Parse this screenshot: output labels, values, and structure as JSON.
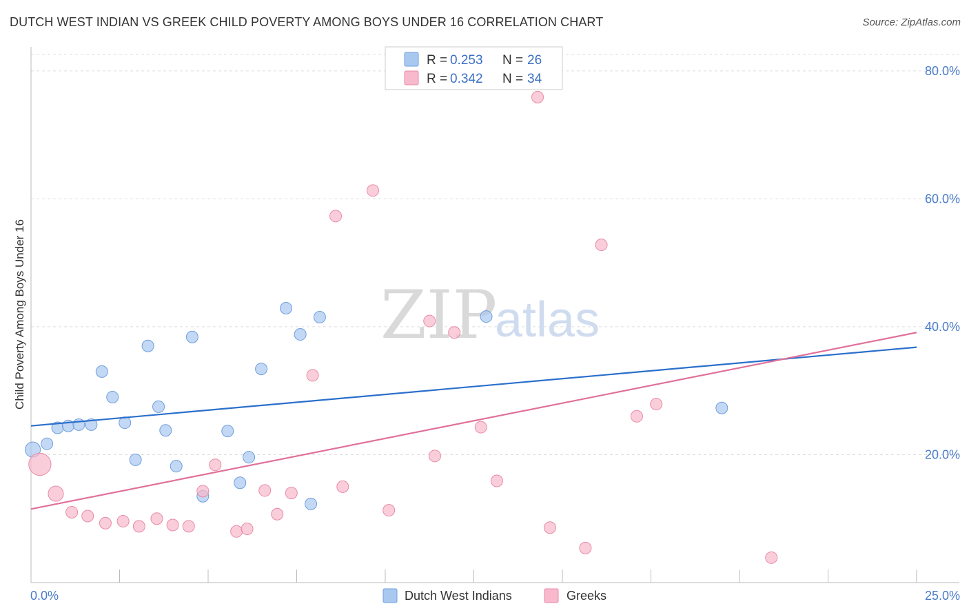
{
  "header": {
    "title": "DUTCH WEST INDIAN VS GREEK CHILD POVERTY AMONG BOYS UNDER 16 CORRELATION CHART",
    "source": "Source: ZipAtlas.com"
  },
  "watermark": {
    "zip": "ZIP",
    "atlas": "atlas"
  },
  "legend": {
    "r_label": "R =",
    "n_label": "N =",
    "entries": [
      {
        "r": "0.253",
        "n": "26",
        "color": "#a9c8f0"
      },
      {
        "r": "0.342",
        "n": "34",
        "color": "#f7b9cb"
      }
    ]
  },
  "bottom_legend": [
    {
      "label": "Dutch West Indians",
      "color": "#a9c8f0"
    },
    {
      "label": "Greeks",
      "color": "#f7b9cb"
    }
  ],
  "colors": {
    "blue_fill": "#a9c8f0",
    "blue_stroke": "#6f9fdc",
    "blue_line": "#2a6fcc",
    "pink_fill": "#f7b9cb",
    "pink_stroke": "#e98aa8",
    "pink_line": "#e0709a",
    "grid": "#dddddd",
    "axis": "#bbbbbb"
  },
  "chart_data": {
    "type": "scatter",
    "ylabel": "Child Poverty Among Boys Under 16",
    "xlim": [
      0,
      25
    ],
    "ylim": [
      0,
      83
    ],
    "x_tick_labels": [
      {
        "value": 0,
        "label": "0.0%"
      },
      {
        "value": 25,
        "label": "25.0%"
      }
    ],
    "y_tick_labels": [
      {
        "value": 20,
        "label": "20.0%"
      },
      {
        "value": 40,
        "label": "40.0%"
      },
      {
        "value": 60,
        "label": "60.0%"
      },
      {
        "value": 80,
        "label": "80.0%"
      }
    ],
    "grid": true,
    "legend_position": "top-center",
    "series": [
      {
        "name": "Dutch West Indians",
        "r": 0.253,
        "n": 26,
        "trend": {
          "x": [
            0,
            25
          ],
          "y": [
            24.5,
            36.8
          ]
        },
        "points": [
          {
            "x": 0.05,
            "y": 20.8,
            "s": 1.3
          },
          {
            "x": 0.45,
            "y": 21.7,
            "s": 1
          },
          {
            "x": 0.75,
            "y": 24.2,
            "s": 1
          },
          {
            "x": 1.05,
            "y": 24.5,
            "s": 1
          },
          {
            "x": 1.35,
            "y": 24.7,
            "s": 1
          },
          {
            "x": 1.7,
            "y": 24.7,
            "s": 1
          },
          {
            "x": 2.0,
            "y": 33.0,
            "s": 1
          },
          {
            "x": 2.3,
            "y": 29.0,
            "s": 1
          },
          {
            "x": 2.65,
            "y": 25.0,
            "s": 1
          },
          {
            "x": 2.95,
            "y": 19.2,
            "s": 1
          },
          {
            "x": 3.3,
            "y": 37.0,
            "s": 1
          },
          {
            "x": 3.6,
            "y": 27.5,
            "s": 1
          },
          {
            "x": 3.8,
            "y": 23.8,
            "s": 1
          },
          {
            "x": 4.1,
            "y": 18.2,
            "s": 1
          },
          {
            "x": 4.55,
            "y": 38.4,
            "s": 1
          },
          {
            "x": 4.85,
            "y": 13.5,
            "s": 1
          },
          {
            "x": 5.55,
            "y": 23.7,
            "s": 1
          },
          {
            "x": 5.9,
            "y": 15.6,
            "s": 1
          },
          {
            "x": 6.15,
            "y": 19.6,
            "s": 1
          },
          {
            "x": 6.5,
            "y": 33.4,
            "s": 1
          },
          {
            "x": 7.2,
            "y": 42.9,
            "s": 1
          },
          {
            "x": 7.6,
            "y": 38.8,
            "s": 1
          },
          {
            "x": 7.9,
            "y": 12.3,
            "s": 1
          },
          {
            "x": 8.15,
            "y": 41.5,
            "s": 1
          },
          {
            "x": 12.85,
            "y": 41.6,
            "s": 1
          },
          {
            "x": 19.5,
            "y": 27.3,
            "s": 1
          }
        ]
      },
      {
        "name": "Greeks",
        "r": 0.342,
        "n": 34,
        "trend": {
          "x": [
            0,
            25
          ],
          "y": [
            11.5,
            39.1
          ]
        },
        "points": [
          {
            "x": 0.25,
            "y": 18.5,
            "s": 1.9
          },
          {
            "x": 0.7,
            "y": 13.9,
            "s": 1.3
          },
          {
            "x": 1.15,
            "y": 11.0,
            "s": 1
          },
          {
            "x": 1.6,
            "y": 10.4,
            "s": 1
          },
          {
            "x": 2.1,
            "y": 9.3,
            "s": 1
          },
          {
            "x": 2.6,
            "y": 9.6,
            "s": 1
          },
          {
            "x": 3.05,
            "y": 8.8,
            "s": 1
          },
          {
            "x": 3.55,
            "y": 10.0,
            "s": 1
          },
          {
            "x": 4.0,
            "y": 9.0,
            "s": 1
          },
          {
            "x": 4.45,
            "y": 8.8,
            "s": 1
          },
          {
            "x": 4.85,
            "y": 14.3,
            "s": 1
          },
          {
            "x": 5.2,
            "y": 18.4,
            "s": 1
          },
          {
            "x": 5.8,
            "y": 8.0,
            "s": 1
          },
          {
            "x": 6.1,
            "y": 8.4,
            "s": 1
          },
          {
            "x": 6.6,
            "y": 14.4,
            "s": 1
          },
          {
            "x": 6.95,
            "y": 10.7,
            "s": 1
          },
          {
            "x": 7.35,
            "y": 14.0,
            "s": 1
          },
          {
            "x": 7.95,
            "y": 32.4,
            "s": 1
          },
          {
            "x": 8.6,
            "y": 57.3,
            "s": 1
          },
          {
            "x": 8.8,
            "y": 15.0,
            "s": 1
          },
          {
            "x": 9.65,
            "y": 61.3,
            "s": 1
          },
          {
            "x": 10.1,
            "y": 11.3,
            "s": 1
          },
          {
            "x": 11.25,
            "y": 40.9,
            "s": 1
          },
          {
            "x": 11.4,
            "y": 19.8,
            "s": 1
          },
          {
            "x": 11.95,
            "y": 39.1,
            "s": 1
          },
          {
            "x": 12.7,
            "y": 24.3,
            "s": 1
          },
          {
            "x": 13.15,
            "y": 15.9,
            "s": 1
          },
          {
            "x": 14.3,
            "y": 75.9,
            "s": 1
          },
          {
            "x": 14.65,
            "y": 8.6,
            "s": 1
          },
          {
            "x": 15.65,
            "y": 5.4,
            "s": 1
          },
          {
            "x": 16.1,
            "y": 52.8,
            "s": 1
          },
          {
            "x": 17.1,
            "y": 26.0,
            "s": 1
          },
          {
            "x": 17.65,
            "y": 27.9,
            "s": 1
          },
          {
            "x": 20.9,
            "y": 3.9,
            "s": 1
          }
        ]
      }
    ]
  }
}
